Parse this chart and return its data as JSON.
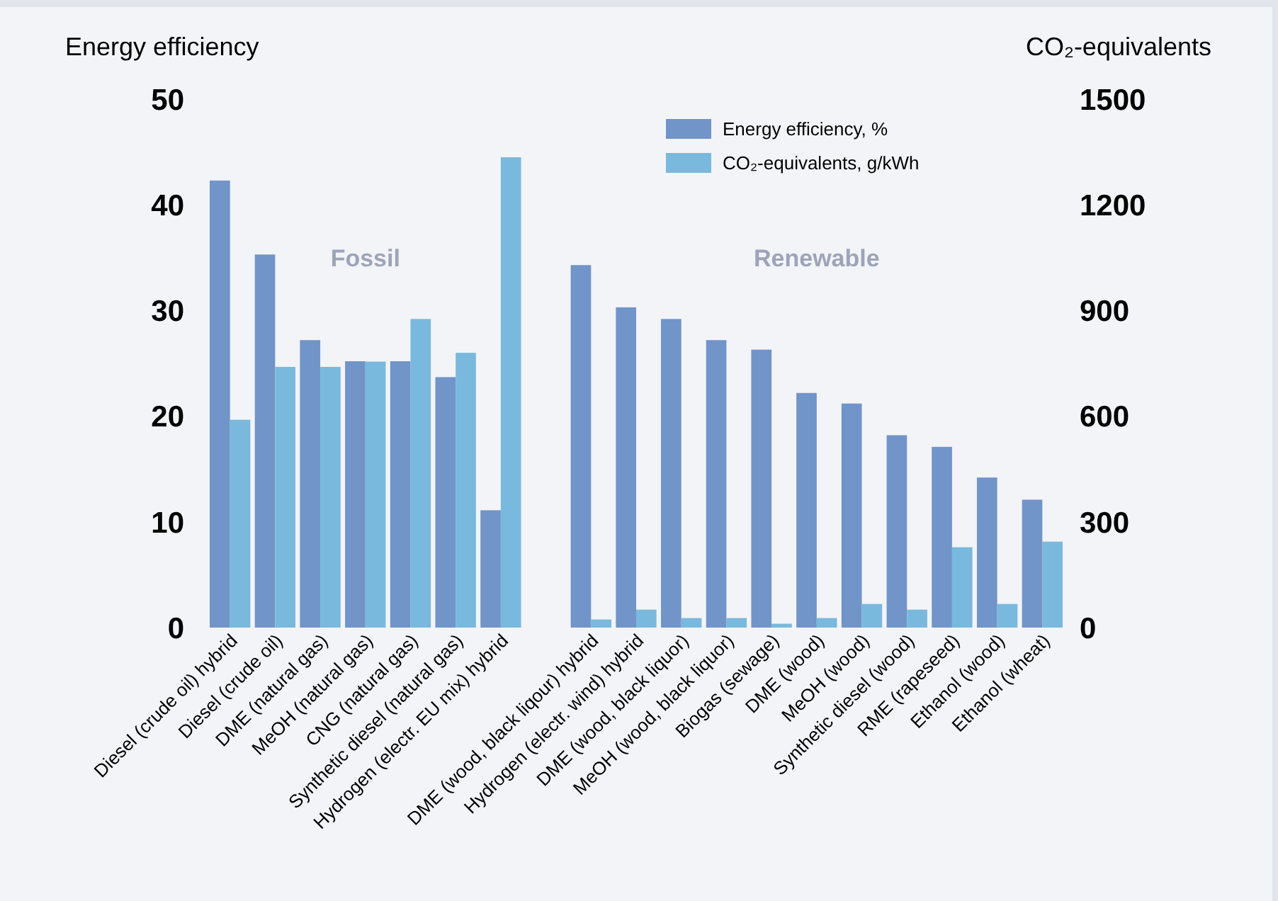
{
  "chart_data": {
    "type": "bar",
    "ylabel": "Energy efficiency",
    "y2label": "CO₂-equivalents",
    "categories": [
      "Diesel (crude oil) hybrid",
      "Diesel (crude oil)",
      "DME (natural gas)",
      "MeOH (natural gas)",
      "CNG (natural gas)",
      "Synthetic diesel (natural gas)",
      "Hydrogen (electr. EU mix) hybrid",
      null,
      "DME (wood, black liqour) hybrid",
      "Hydrogen (electr. wind) hybrid",
      "DME (wood, black liquor)",
      "MeOH (wood, black liquor)",
      "Biogas (sewage)",
      "DME (wood)",
      "MeOH (wood)",
      "Synthetic diesel (wood)",
      "RME (rapeseed)",
      "Ethanol (wood)",
      "Ethanol (wheat)"
    ],
    "series": [
      {
        "name": "Energy efficiency, %",
        "color": "#7194c9",
        "values": [
          42.3,
          35.3,
          27.2,
          25.2,
          25.2,
          23.7,
          11.1,
          null,
          34.3,
          30.3,
          29.2,
          27.2,
          26.3,
          22.2,
          21.2,
          18.2,
          17.1,
          14.2,
          12.1
        ]
      },
      {
        "name": "CO₂-equivalents, g/kWh",
        "color": "#79b9dd",
        "axis": "y2",
        "values": [
          590,
          740,
          740,
          755,
          876,
          780,
          1335,
          null,
          23,
          51,
          27,
          27,
          11,
          27,
          67,
          51,
          228,
          67,
          244
        ]
      }
    ],
    "ylim": [
      0,
      50
    ],
    "yticks": [
      0,
      10,
      20,
      30,
      40,
      50
    ],
    "y2lim": [
      0,
      1500
    ],
    "y2ticks": [
      0,
      300,
      600,
      900,
      1200,
      1500
    ],
    "legend": "top right",
    "grid": false,
    "annotations": [
      "Fossil",
      "Renewable"
    ]
  }
}
